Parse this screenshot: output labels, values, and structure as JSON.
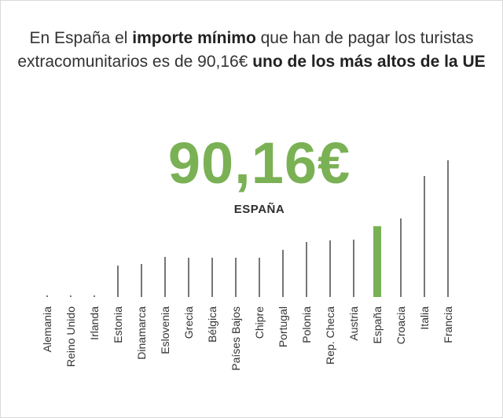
{
  "title": {
    "part1": "En España el ",
    "bold1": "importe mínimo",
    "part2": " que han de pagar los turistas extracomunitarios es de 90,16€ ",
    "bold2": "uno de los más altos de la UE"
  },
  "highlight": {
    "value": "90,16€",
    "label": "ESPAÑA"
  },
  "colors": {
    "highlight": "#7ab155",
    "bar": "#555555"
  },
  "chart_data": {
    "type": "bar",
    "title": "",
    "xlabel": "",
    "ylabel": "",
    "categories": [
      "Alemania",
      "Reino Unido",
      "Irlanda",
      "Estonia",
      "Dinamarca",
      "Eslovenia",
      "Grecia",
      "Bélgica",
      "Países Bajos",
      "Chipre",
      "Portugal",
      "Polonia",
      "Rep. Checa",
      "Austria",
      "España",
      "Croacia",
      "Italia",
      "Francia"
    ],
    "values": [
      0,
      0,
      0,
      40,
      42,
      51,
      50,
      50,
      50,
      50,
      60,
      70,
      72,
      73,
      90.16,
      100,
      154,
      174
    ],
    "highlight_category": "España",
    "ylim": [
      0,
      180
    ],
    "grid": false
  }
}
